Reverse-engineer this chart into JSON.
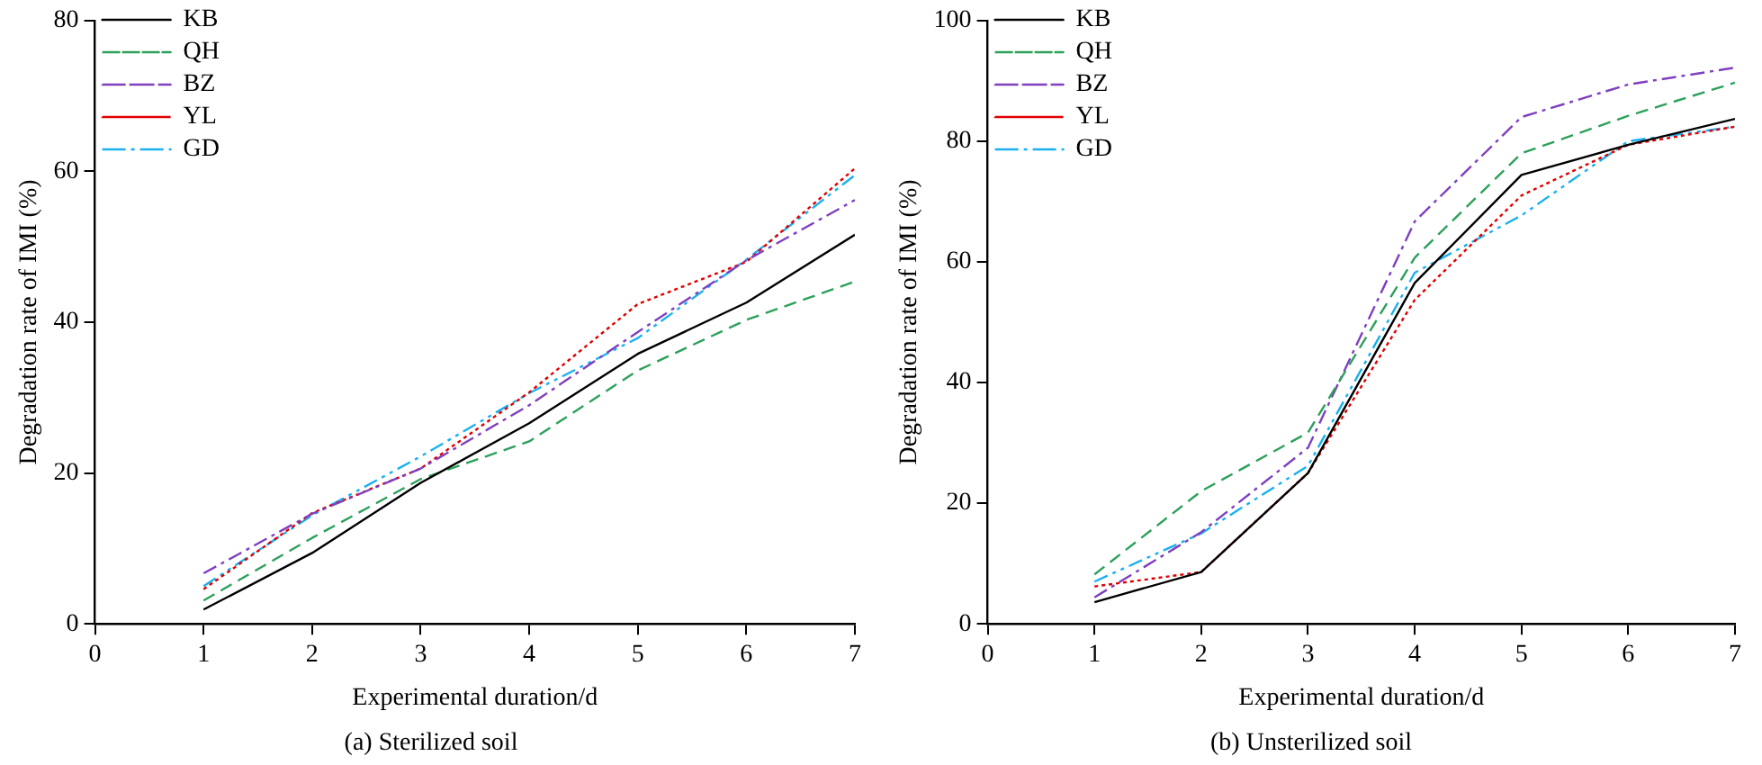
{
  "chart_data": [
    {
      "type": "line",
      "title": "(a) Sterilized soil",
      "xlabel": "Experimental duration/d",
      "ylabel": "Degradation rate of IMI (%)",
      "x": [
        1,
        2,
        3,
        4,
        5,
        6,
        7
      ],
      "xlim": [
        0,
        7
      ],
      "xticks": [
        0,
        1,
        2,
        3,
        4,
        5,
        6,
        7
      ],
      "ylim": [
        0,
        80
      ],
      "yticks": [
        0,
        20,
        40,
        60,
        80
      ],
      "grid": false,
      "legend": "top left",
      "marker": "none",
      "series": [
        {
          "name": "KB",
          "color": "#000000",
          "line_style": "solid",
          "values": [
            1.9,
            9.4,
            18.7,
            26.6,
            35.8,
            42.6,
            51.6
          ]
        },
        {
          "name": "QH",
          "color": "#2ca05a",
          "line_style": "dashed",
          "values": [
            3.1,
            11.4,
            19.2,
            24.2,
            33.6,
            40.3,
            45.4
          ]
        },
        {
          "name": "BZ",
          "color": "#7f3fbf",
          "line_style": "dashdot",
          "values": [
            6.7,
            14.6,
            20.6,
            29,
            38.7,
            48.2,
            56.2
          ]
        },
        {
          "name": "YL",
          "color": "#e00000",
          "line_style": "dotted",
          "values": [
            4.6,
            14.7,
            20.6,
            30.7,
            42.4,
            48,
            60.4
          ]
        },
        {
          "name": "GD",
          "color": "#1ab0f0",
          "line_style": "dashdotdot",
          "values": [
            5,
            14.4,
            22.2,
            30.6,
            37.9,
            48.3,
            59.5
          ]
        }
      ]
    },
    {
      "type": "line",
      "title": "(b) Unsterilized soil",
      "xlabel": "Experimental duration/d",
      "ylabel": "Degradation rate of IMI (%)",
      "x": [
        1,
        2,
        3,
        4,
        5,
        6,
        7
      ],
      "xlim": [
        0,
        7
      ],
      "xticks": [
        0,
        1,
        2,
        3,
        4,
        5,
        6,
        7
      ],
      "ylim": [
        0,
        100
      ],
      "yticks": [
        0,
        20,
        40,
        60,
        80,
        100
      ],
      "grid": false,
      "legend": "top left",
      "marker": "none",
      "series": [
        {
          "name": "KB",
          "color": "#000000",
          "line_style": "solid",
          "values": [
            3.6,
            8.6,
            25,
            56.5,
            74.4,
            79.4,
            83.7
          ]
        },
        {
          "name": "QH",
          "color": "#2ca05a",
          "line_style": "dashed",
          "values": [
            8.2,
            22,
            31.7,
            60.7,
            78,
            84.2,
            89.7
          ]
        },
        {
          "name": "BZ",
          "color": "#7f3fbf",
          "line_style": "dashdot",
          "values": [
            4.4,
            15.2,
            29.2,
            66.7,
            84,
            89.4,
            92.2
          ]
        },
        {
          "name": "YL",
          "color": "#e00000",
          "line_style": "dotted",
          "values": [
            6.2,
            8.6,
            25,
            53.7,
            71,
            79.4,
            82.4
          ]
        },
        {
          "name": "GD",
          "color": "#1ab0f0",
          "line_style": "dashdotdot",
          "values": [
            7,
            15,
            26.2,
            58.2,
            67.7,
            80,
            82.4
          ]
        }
      ]
    }
  ]
}
